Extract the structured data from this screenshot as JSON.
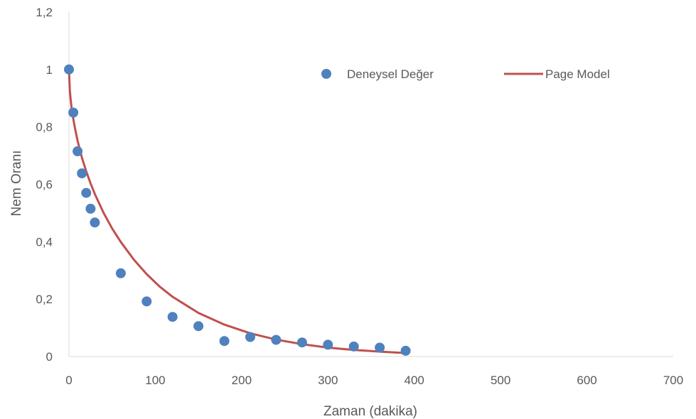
{
  "chart_data": {
    "type": "scatter",
    "title": "",
    "xlabel": "Zaman (dakika)",
    "ylabel": "Nem Oranı",
    "xlim": [
      0,
      700
    ],
    "ylim": [
      0,
      1.2
    ],
    "x_ticks": [
      0,
      100,
      200,
      300,
      400,
      500,
      600,
      700
    ],
    "x_tick_labels": [
      "0",
      "100",
      "200",
      "300",
      "400",
      "500",
      "600",
      "700"
    ],
    "y_ticks": [
      0,
      0.2,
      0.4,
      0.6,
      0.8,
      1,
      1.2
    ],
    "y_tick_labels": [
      "0",
      "0,2",
      "0,4",
      "0,6",
      "0,8",
      "1",
      "1,2"
    ],
    "grid": false,
    "legend_position": "top-right",
    "colors": {
      "points": "#4f81bd",
      "line": "#c0504d",
      "axis": "#d9d9d9",
      "text": "#595959"
    },
    "series": [
      {
        "name": "Deneysel Değer",
        "kind": "scatter",
        "x": [
          0,
          5,
          10,
          15,
          20,
          25,
          30,
          60,
          90,
          120,
          150,
          180,
          210,
          240,
          270,
          300,
          330,
          360,
          390
        ],
        "y": [
          1.0,
          0.85,
          0.715,
          0.638,
          0.57,
          0.515,
          0.467,
          0.29,
          0.192,
          0.138,
          0.106,
          0.054,
          0.068,
          0.058,
          0.049,
          0.041,
          0.035,
          0.031,
          0.02
        ]
      },
      {
        "name": "Page Model",
        "kind": "line",
        "x": [
          0,
          1,
          2,
          3,
          5,
          7,
          10,
          15,
          20,
          25,
          30,
          40,
          50,
          60,
          75,
          90,
          105,
          120,
          150,
          180,
          210,
          240,
          270,
          300,
          330,
          360,
          390
        ],
        "y": [
          1.0,
          0.927,
          0.895,
          0.869,
          0.828,
          0.795,
          0.752,
          0.693,
          0.645,
          0.603,
          0.566,
          0.501,
          0.446,
          0.399,
          0.338,
          0.287,
          0.244,
          0.208,
          0.152,
          0.111,
          0.081,
          0.059,
          0.043,
          0.031,
          0.023,
          0.017,
          0.012
        ]
      }
    ]
  }
}
